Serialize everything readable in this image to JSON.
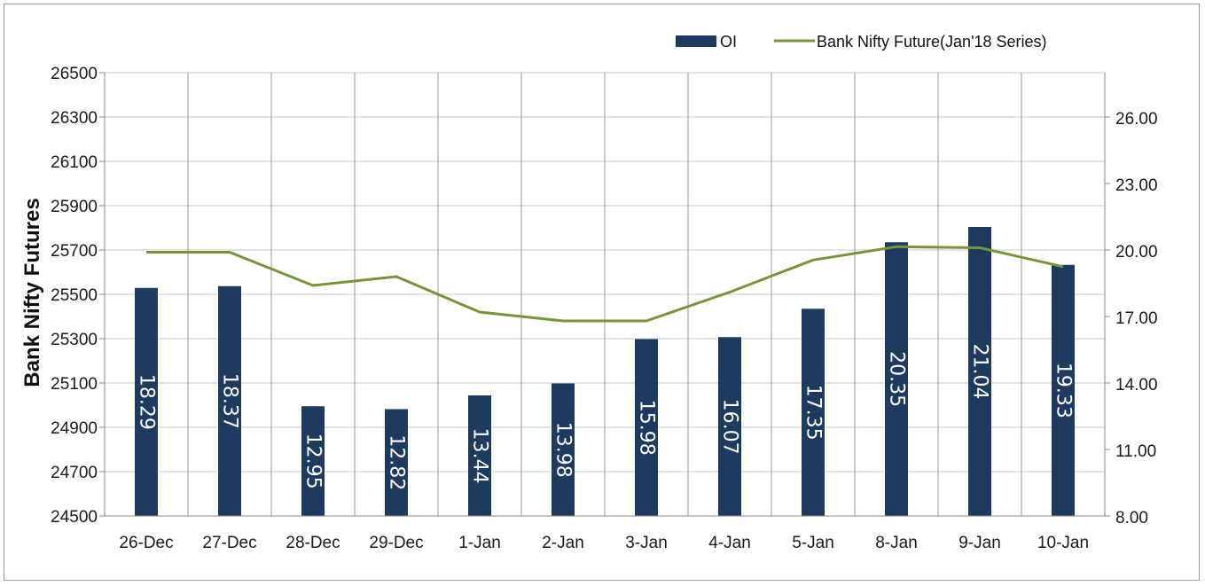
{
  "chart_data": {
    "type": "bar",
    "categories": [
      "26-Dec",
      "27-Dec",
      "28-Dec",
      "29-Dec",
      "1-Jan",
      "2-Jan",
      "3-Jan",
      "4-Jan",
      "5-Jan",
      "8-Jan",
      "9-Jan",
      "10-Jan"
    ],
    "series": [
      {
        "name": "OI",
        "type": "bar",
        "axis": "right",
        "color": "#1f3a5f",
        "values": [
          18.29,
          18.37,
          12.95,
          12.82,
          13.44,
          13.98,
          15.98,
          16.07,
          17.35,
          20.35,
          21.04,
          19.33
        ],
        "labels": [
          "18.29",
          "18.37",
          "12.95",
          "12.82",
          "13.44",
          "13.98",
          "15.98",
          "16.07",
          "17.35",
          "20.35",
          "21.04",
          "19.33"
        ]
      },
      {
        "name": "Bank Nifty Future(Jan'18 Series)",
        "type": "line",
        "axis": "left",
        "color": "#77933c",
        "values": [
          25690,
          25690,
          25540,
          25580,
          25420,
          25380,
          25380,
          25510,
          25655,
          25715,
          25710,
          25625
        ]
      }
    ],
    "ylabel": "Bank Nifty Futures",
    "y_left": {
      "range": [
        24500,
        26500
      ],
      "ticks": [
        "24500",
        "24700",
        "24900",
        "25100",
        "25300",
        "25500",
        "25700",
        "25900",
        "26100",
        "26300",
        "26500"
      ]
    },
    "y_right": {
      "range": [
        8.0,
        28.0
      ],
      "tick_values": [
        8,
        11,
        14,
        17,
        20,
        23,
        26
      ],
      "ticks": [
        "8.00",
        "11.00",
        "14.00",
        "17.00",
        "20.00",
        "23.00",
        "26.00"
      ]
    },
    "grid": true,
    "legend": "top-right"
  }
}
